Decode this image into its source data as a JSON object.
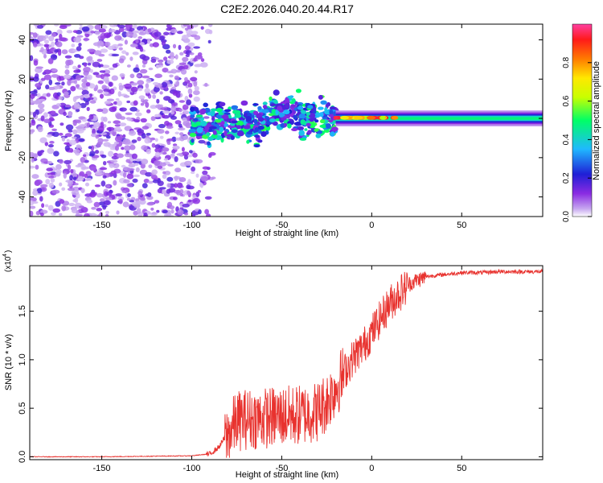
{
  "title": "C2E2.2026.040.20.44.R17",
  "colors": {
    "snr_line": "#e8322e",
    "colormap": [
      "#ffffff",
      "#c7a8f0",
      "#8a2be2",
      "#1f1fd6",
      "#1fb8ff",
      "#00ff66",
      "#c8ff00",
      "#ffe800",
      "#ff7a00",
      "#ff1a1a",
      "#ff3fa0"
    ]
  },
  "chart_data": [
    {
      "type": "heatmap",
      "title": "C2E2.2026.040.20.44.R17",
      "xlabel": "Height of straight line (km)",
      "ylabel": "Frequency (Hz)",
      "xlim": [
        -190,
        95
      ],
      "ylim": [
        -50,
        48
      ],
      "xticks": [
        -150,
        -100,
        -50,
        0,
        50
      ],
      "yticks": [
        -40,
        -20,
        0,
        20,
        40
      ],
      "tick_labels_x": [
        "-150",
        "-100",
        "-50",
        "0",
        "50"
      ],
      "tick_labels_y": [
        "-40",
        "-20",
        "0",
        "20",
        "40"
      ],
      "colorbar": {
        "label": "Normalized spectral amplitude",
        "range": [
          0,
          1
        ],
        "ticks": [
          0.0,
          0.2,
          0.4,
          0.6,
          0.8
        ],
        "tick_labels": [
          "0.0",
          "0.2",
          "0.4",
          "0.6",
          "0.8"
        ]
      },
      "features": [
        {
          "region": "noise",
          "x_range": [
            -190,
            -88
          ],
          "freq_range": [
            -50,
            48
          ],
          "amplitude": 0.1
        },
        {
          "region": "transition",
          "x_range": [
            -100,
            -20
          ],
          "freq_center": 0,
          "freq_width": 10,
          "amplitude": 0.2
        },
        {
          "region": "signal line",
          "x_range": [
            -20,
            95
          ],
          "freq_center": 0,
          "freq_width": 4,
          "amplitude": 0.45
        },
        {
          "region": "peak",
          "x_range": [
            -20,
            15
          ],
          "freq_center": 0,
          "amplitude": 0.95
        }
      ]
    },
    {
      "type": "line",
      "xlabel": "Height of straight line (km)",
      "ylabel": "SNR (10 * v/v)",
      "scale_label": "(x10",
      "scale_exponent": "4",
      "xlim": [
        -190,
        95
      ],
      "ylim": [
        -0.03,
        1.97
      ],
      "xticks": [
        -150,
        -100,
        -50,
        0,
        50
      ],
      "yticks": [
        0.0,
        0.5,
        1.0,
        1.5
      ],
      "tick_labels_x": [
        "-150",
        "-100",
        "-50",
        "0",
        "50"
      ],
      "tick_labels_y": [
        "0.0",
        "0.5",
        "1.0",
        "1.5"
      ],
      "series": [
        {
          "x": [
            -190,
            -150,
            -100,
            -90,
            -85,
            -80,
            -75,
            -70,
            -60,
            -50,
            -40,
            -30,
            -25,
            -20,
            -15,
            -10,
            -5,
            0,
            5,
            10,
            15,
            20,
            25,
            30,
            40,
            50,
            60,
            70,
            80,
            95
          ],
          "y": [
            0.0,
            0.0,
            0.01,
            0.03,
            0.1,
            0.25,
            0.4,
            0.42,
            0.43,
            0.45,
            0.46,
            0.5,
            0.6,
            0.75,
            0.9,
            1.05,
            1.15,
            1.3,
            1.45,
            1.6,
            1.7,
            1.78,
            1.83,
            1.86,
            1.88,
            1.9,
            1.9,
            1.91,
            1.91,
            1.91
          ]
        }
      ]
    }
  ]
}
